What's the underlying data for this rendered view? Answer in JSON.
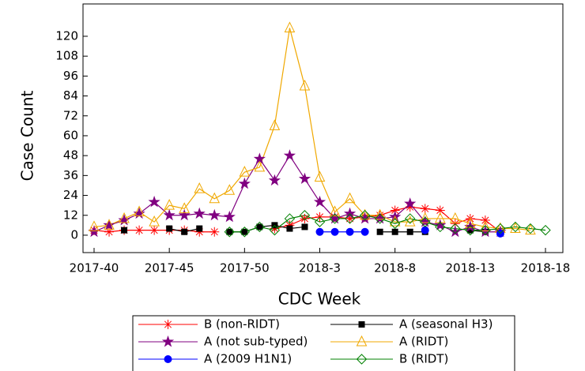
{
  "chart_data": {
    "type": "line",
    "x_label": "CDC Week",
    "y_label": "Case Count",
    "categories": [
      "2017-40",
      null,
      null,
      null,
      null,
      "2017-45",
      null,
      null,
      null,
      null,
      "2017-50",
      null,
      null,
      null,
      null,
      "2018-3",
      null,
      null,
      null,
      null,
      "2018-8",
      null,
      null,
      null,
      null,
      "2018-13",
      null,
      null,
      null,
      null,
      "2018-18"
    ],
    "ylim": [
      -10.5,
      139.5
    ],
    "yticks": [
      0,
      12,
      24,
      36,
      48,
      60,
      72,
      84,
      96,
      108,
      120
    ],
    "series": [
      {
        "name": "B (non-RIDT)",
        "color": "#ff0000",
        "marker": "asterisk",
        "values": [
          3,
          2,
          3,
          3,
          3,
          3,
          3,
          2,
          2,
          null,
          null,
          null,
          4,
          6,
          10,
          11,
          11,
          10,
          11,
          12,
          15,
          17,
          16,
          15,
          7,
          10,
          9,
          2,
          null,
          null,
          null
        ]
      },
      {
        "name": "A (seasonal H3)",
        "color": "#000000",
        "marker": "square",
        "values": [
          null,
          null,
          3,
          null,
          null,
          4,
          2,
          4,
          null,
          2,
          2,
          5,
          6,
          4,
          5,
          null,
          null,
          null,
          null,
          2,
          2,
          2,
          2,
          null,
          null,
          3,
          2,
          null,
          null,
          null,
          null
        ]
      },
      {
        "name": "A (not sub-typed)",
        "color": "#800080",
        "marker": "star",
        "values": [
          2,
          6,
          9,
          13,
          20,
          12,
          12,
          13,
          12,
          11,
          31,
          46,
          33,
          48,
          34,
          20,
          10,
          13,
          10,
          10,
          11,
          19,
          8,
          6,
          2,
          5,
          2,
          2,
          null,
          null,
          null
        ]
      },
      {
        "name": "A (RIDT)",
        "color": "#f0a800",
        "marker": "triangle",
        "values": [
          5,
          6,
          10,
          14,
          8,
          18,
          16,
          28,
          22,
          27,
          38,
          41,
          66,
          125,
          90,
          35,
          14,
          22,
          12,
          12,
          8,
          8,
          10,
          10,
          10,
          7,
          5,
          4,
          4,
          3,
          null
        ]
      },
      {
        "name": "A (2009 H1N1)",
        "color": "#0000ff",
        "marker": "circle",
        "values": [
          null,
          null,
          null,
          null,
          null,
          null,
          null,
          null,
          null,
          null,
          null,
          null,
          null,
          null,
          null,
          2,
          2,
          2,
          2,
          null,
          null,
          null,
          3,
          null,
          null,
          null,
          null,
          1,
          null,
          null,
          null
        ]
      },
      {
        "name": "B (RIDT)",
        "color": "#008000",
        "marker": "diamond",
        "values": [
          null,
          null,
          null,
          null,
          null,
          null,
          null,
          null,
          null,
          2,
          2,
          5,
          3,
          10,
          12,
          8,
          10,
          10,
          12,
          10,
          7,
          10,
          8,
          5,
          4,
          3,
          3,
          4,
          5,
          4,
          3
        ]
      }
    ]
  }
}
